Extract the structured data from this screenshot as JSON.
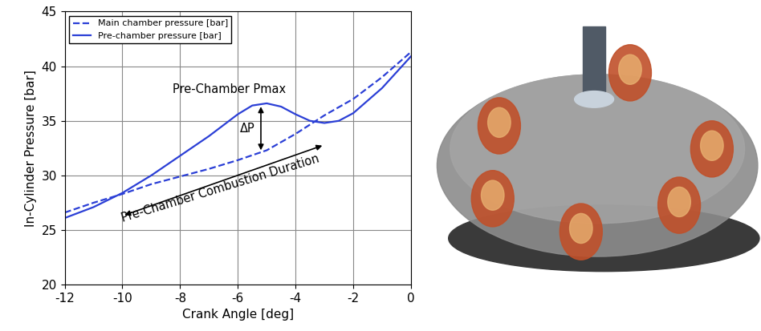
{
  "chart_data": {
    "type": "line",
    "xlabel": "Crank Angle [deg]",
    "ylabel": "In-Cylinder Pressure [bar]",
    "xlim": [
      -12,
      0
    ],
    "xticks": [
      -12,
      -10,
      -8,
      -6,
      -4,
      -2,
      0
    ],
    "ylim": [
      20,
      45
    ],
    "yticks": [
      20,
      25,
      30,
      35,
      40,
      45
    ],
    "grid": true,
    "legend": "upper left",
    "annotations": [
      "Pre-Chamber Pmax",
      "ΔP",
      "Pre-Chamber Combustion Duration"
    ],
    "series": [
      {
        "name": "Main chamber pressure [bar]",
        "color": "#2b3fd6",
        "line_style": "dashed",
        "x": [
          -12,
          -11,
          -10,
          -9,
          -8,
          -7,
          -6,
          -5,
          -4,
          -3,
          -2,
          -1,
          0
        ],
        "values": [
          26.6,
          27.5,
          28.3,
          29.2,
          29.9,
          30.6,
          31.4,
          32.3,
          33.8,
          35.5,
          37.0,
          39.0,
          41.3
        ]
      },
      {
        "name": "Pre-chamber pressure [bar]",
        "color": "#2b3fd6",
        "line_style": "solid",
        "x": [
          -12,
          -11,
          -10,
          -9,
          -8,
          -7,
          -6,
          -5.5,
          -5,
          -4.5,
          -4,
          -3.5,
          -3,
          -2.5,
          -2,
          -1,
          0
        ],
        "values": [
          26.1,
          27.1,
          28.4,
          30.0,
          31.8,
          33.6,
          35.6,
          36.4,
          36.6,
          36.3,
          35.6,
          35.0,
          34.8,
          35.0,
          35.7,
          38.0,
          40.9
        ]
      }
    ]
  }
}
